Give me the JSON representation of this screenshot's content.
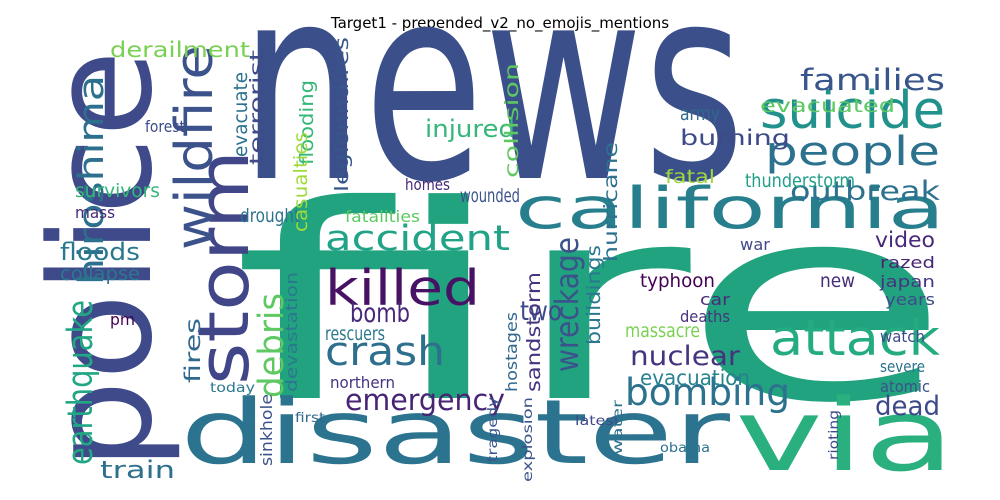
{
  "chart_data": {
    "type": "wordcloud",
    "title": "Target1 - prepended_v2_no_emojis_mentions",
    "words": [
      {
        "text": "news",
        "value": 100,
        "color": "#3b4f8a"
      },
      {
        "text": "fire",
        "value": 100,
        "color": "#22a37f"
      },
      {
        "text": "police",
        "value": 52,
        "color": "#3e4a89"
      },
      {
        "text": "disaster",
        "value": 33,
        "color": "#2b738e"
      },
      {
        "text": "via",
        "value": 37,
        "color": "#2ab07f"
      },
      {
        "text": "california",
        "value": 21,
        "color": "#277f8e"
      },
      {
        "text": "storm",
        "value": 26,
        "color": "#404688"
      },
      {
        "text": "wildfire",
        "value": 19,
        "color": "#3b528b"
      },
      {
        "text": "suicide",
        "value": 19,
        "color": "#21918c"
      },
      {
        "text": "people",
        "value": 15,
        "color": "#2c718e"
      },
      {
        "text": "attack",
        "value": 18,
        "color": "#25ab82"
      },
      {
        "text": "accident",
        "value": 13,
        "color": "#20a386"
      },
      {
        "text": "killed",
        "value": 18,
        "color": "#471164"
      },
      {
        "text": "crash",
        "value": 15,
        "color": "#2e6f8e"
      },
      {
        "text": "bombing",
        "value": 14,
        "color": "#2c728e"
      },
      {
        "text": "emergency",
        "value": 11,
        "color": "#482475"
      },
      {
        "text": "hiroshima",
        "value": 13,
        "color": "#2d708e"
      },
      {
        "text": "earthquake",
        "value": 13,
        "color": "#22a785"
      },
      {
        "text": "debris",
        "value": 13,
        "color": "#5ec962"
      },
      {
        "text": "wreckage",
        "value": 12,
        "color": "#3b528b"
      },
      {
        "text": "families",
        "value": 11,
        "color": "#39568c"
      },
      {
        "text": "outbreak",
        "value": 10,
        "color": "#2c728e"
      },
      {
        "text": "derailment",
        "value": 8,
        "color": "#7ad151"
      },
      {
        "text": "floods",
        "value": 9,
        "color": "#2a788e"
      },
      {
        "text": "train",
        "value": 9,
        "color": "#2d708e"
      },
      {
        "text": "dead",
        "value": 10,
        "color": "#3e4989"
      },
      {
        "text": "nuclear",
        "value": 10,
        "color": "#46337f"
      },
      {
        "text": "bomb",
        "value": 10,
        "color": "#482878"
      },
      {
        "text": "two",
        "value": 10,
        "color": "#3e4a89"
      },
      {
        "text": "fires",
        "value": 8,
        "color": "#31688e"
      },
      {
        "text": "injured",
        "value": 9,
        "color": "#35b779"
      },
      {
        "text": "burning",
        "value": 8,
        "color": "#3e4a89"
      },
      {
        "text": "evacuated",
        "value": 7,
        "color": "#5ec962"
      },
      {
        "text": "evacuation",
        "value": 8,
        "color": "#26828e"
      },
      {
        "text": "thunderstorm",
        "value": 7,
        "color": "#1f9e89"
      },
      {
        "text": "massacre",
        "value": 7,
        "color": "#7ad151"
      },
      {
        "text": "typhoon",
        "value": 7,
        "color": "#440154"
      },
      {
        "text": "collapse",
        "value": 7,
        "color": "#2a788e"
      },
      {
        "text": "drought",
        "value": 7,
        "color": "#2c728e"
      },
      {
        "text": "video",
        "value": 8,
        "color": "#482878"
      },
      {
        "text": "fatal",
        "value": 7,
        "color": "#9fda3a"
      },
      {
        "text": "army",
        "value": 7,
        "color": "#31688e"
      },
      {
        "text": "hurricane",
        "value": 7,
        "color": "#2c728e"
      },
      {
        "text": "buildings",
        "value": 7,
        "color": "#2a788e"
      },
      {
        "text": "collision",
        "value": 7,
        "color": "#5ec962"
      },
      {
        "text": "legionnaires",
        "value": 7,
        "color": "#39568c"
      },
      {
        "text": "flooding",
        "value": 7,
        "color": "#35b779"
      },
      {
        "text": "evacuate",
        "value": 7,
        "color": "#2c728e"
      },
      {
        "text": "terrorist",
        "value": 7,
        "color": "#3e4a89"
      },
      {
        "text": "casualties",
        "value": 7,
        "color": "#9fda3a"
      },
      {
        "text": "devastation",
        "value": 6,
        "color": "#2a788e"
      },
      {
        "text": "sandstorm",
        "value": 7,
        "color": "#46337f"
      },
      {
        "text": "hostages",
        "value": 6,
        "color": "#31688e"
      },
      {
        "text": "sinkhole",
        "value": 6,
        "color": "#3b528b"
      },
      {
        "text": "rescuers",
        "value": 7,
        "color": "#2a788e"
      },
      {
        "text": "wounded",
        "value": 7,
        "color": "#3b528b"
      },
      {
        "text": "homes",
        "value": 6,
        "color": "#482878"
      },
      {
        "text": "fatalities",
        "value": 6,
        "color": "#5ec962"
      },
      {
        "text": "japan",
        "value": 6,
        "color": "#46337f"
      },
      {
        "text": "years",
        "value": 6,
        "color": "#3e4a89"
      },
      {
        "text": "razed",
        "value": 6,
        "color": "#482475"
      },
      {
        "text": "new",
        "value": 7,
        "color": "#472c7a"
      },
      {
        "text": "watch",
        "value": 6,
        "color": "#3e4a89"
      },
      {
        "text": "severe",
        "value": 6,
        "color": "#2c728e"
      },
      {
        "text": "atomic",
        "value": 6,
        "color": "#3b528b"
      },
      {
        "text": "war",
        "value": 6,
        "color": "#3e4a89"
      },
      {
        "text": "car",
        "value": 6,
        "color": "#472c7a"
      },
      {
        "text": "deaths",
        "value": 6,
        "color": "#46337f"
      },
      {
        "text": "northern",
        "value": 6,
        "color": "#46337f"
      },
      {
        "text": "today",
        "value": 5,
        "color": "#2a788e"
      },
      {
        "text": "first",
        "value": 5,
        "color": "#31688e"
      },
      {
        "text": "latest",
        "value": 5,
        "color": "#3e4a89"
      },
      {
        "text": "obama",
        "value": 5,
        "color": "#2c728e"
      },
      {
        "text": "survivors",
        "value": 7,
        "color": "#35b779"
      },
      {
        "text": "mass",
        "value": 6,
        "color": "#482878"
      },
      {
        "text": "pm",
        "value": 6,
        "color": "#440154"
      },
      {
        "text": "explosion",
        "value": 5,
        "color": "#3b528b"
      },
      {
        "text": "tragedy",
        "value": 5,
        "color": "#39568c"
      },
      {
        "text": "water",
        "value": 5,
        "color": "#2c728e"
      },
      {
        "text": "rioting",
        "value": 5,
        "color": "#3e4a89"
      },
      {
        "text": "forest",
        "value": 6,
        "color": "#3e4a89"
      }
    ]
  }
}
